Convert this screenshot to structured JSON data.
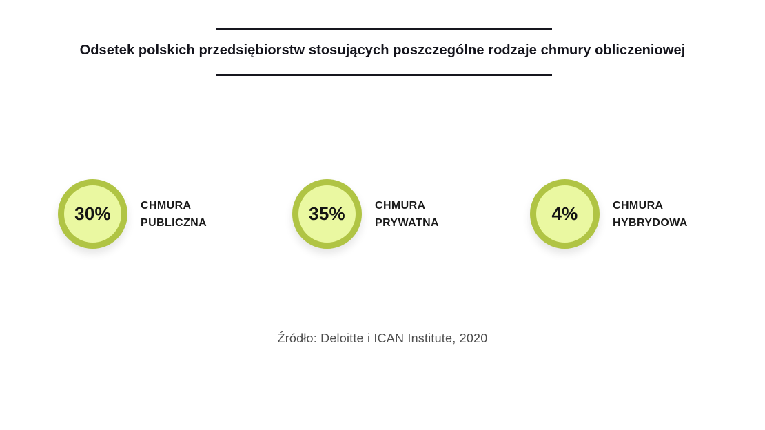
{
  "title": "Odsetek polskich przedsiębiorstw stosujących poszczególne rodzaje chmury obliczeniowej",
  "stats": [
    {
      "value": "30%",
      "label": [
        "CHMURA",
        "PUBLICZNA"
      ]
    },
    {
      "value": "35%",
      "label": [
        "CHMURA",
        "PRYWATNA"
      ]
    },
    {
      "value": "4%",
      "label": [
        "CHMURA",
        "HYBRYDOWA"
      ]
    }
  ],
  "source": "Źródło: Deloitte i ICAN Institute, 2020",
  "colors": {
    "circle_border": "#b0c444",
    "circle_fill": "#eaf8a1",
    "rule": "#16161e",
    "title_text": "#14141c",
    "label_text": "#1a1a1a",
    "source_text": "#4d4d4d"
  },
  "chart_data": {
    "type": "bar",
    "variant": "kpi-circle-infographic",
    "title": "Odsetek polskich przedsiębiorstw stosujących poszczególne rodzaje chmury obliczeniowej",
    "categories": [
      "CHMURA PUBLICZNA",
      "CHMURA PRYWATNA",
      "CHMURA HYBRYDOWA"
    ],
    "values": [
      30,
      35,
      4
    ],
    "unit": "%",
    "xlabel": "",
    "ylabel": "",
    "legend": false,
    "grid": false,
    "annotations": [
      "Źródło: Deloitte i ICAN Institute, 2020"
    ]
  }
}
